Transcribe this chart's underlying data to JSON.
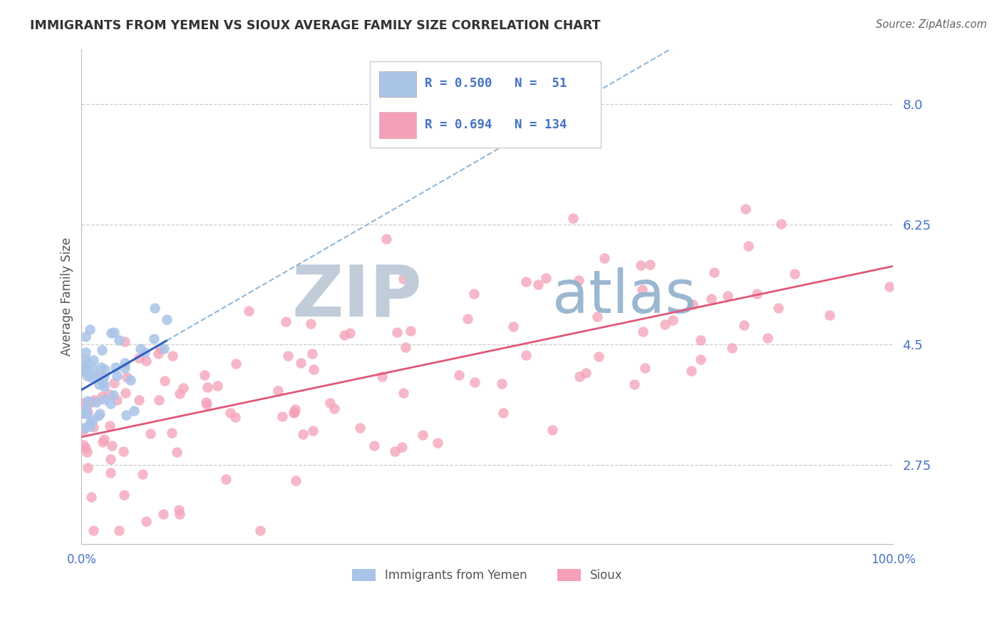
{
  "title": "IMMIGRANTS FROM YEMEN VS SIOUX AVERAGE FAMILY SIZE CORRELATION CHART",
  "source_text": "Source: ZipAtlas.com",
  "ylabel": "Average Family Size",
  "xlim": [
    0.0,
    100.0
  ],
  "ylim": [
    1.6,
    8.8
  ],
  "yticks": [
    2.75,
    4.5,
    6.25,
    8.0
  ],
  "color_yemen": "#aac4e8",
  "color_sioux": "#f4a0b8",
  "line_color_yemen": "#3060c0",
  "line_color_sioux": "#e05878",
  "line_color_dashed": "#90b8d8",
  "watermark_zip_color": "#c0ccd8",
  "watermark_atlas_color": "#90b0cc",
  "title_color": "#333333",
  "axis_label_color": "#555555",
  "tick_color": "#4472c4",
  "source_color": "#666666",
  "legend_text_color": "#4472c4",
  "grid_color": "#cccccc",
  "background_color": "#ffffff",
  "r_yemen": 0.5,
  "n_yemen": 51,
  "r_sioux": 0.694,
  "n_sioux": 134,
  "legend_labels": [
    "Immigrants from Yemen",
    "Sioux"
  ]
}
